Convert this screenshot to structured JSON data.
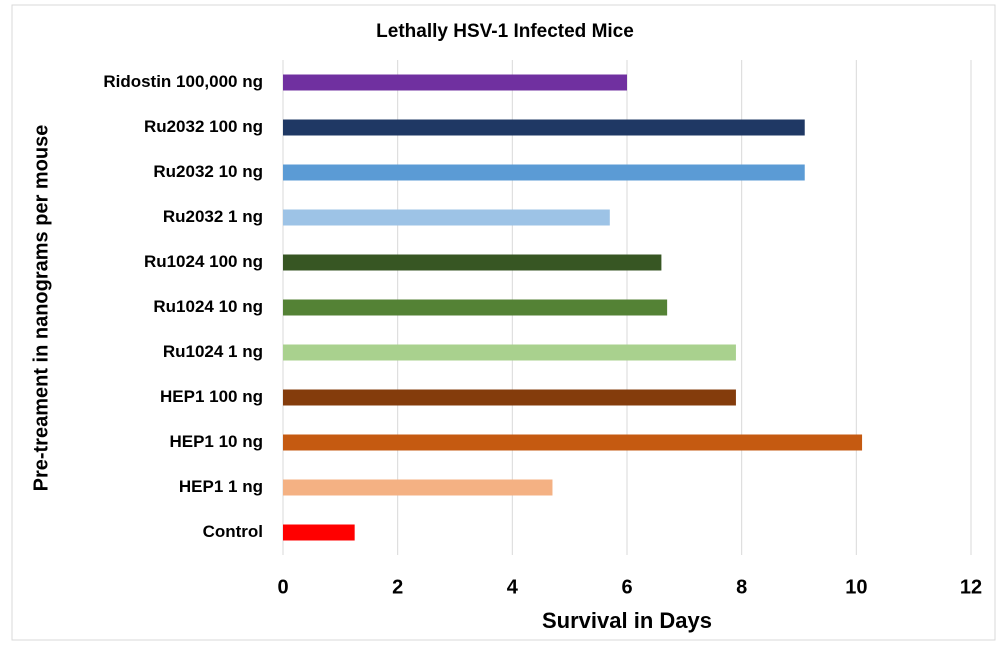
{
  "chart_data": {
    "type": "bar",
    "orientation": "horizontal",
    "title": "Lethally HSV-1 Infected Mice",
    "x_label": "Survival in Days",
    "y_label": "Pre-treament in nanograms per mouse",
    "categories": [
      "Ridostin 100,000 ng",
      "Ru2032 100 ng",
      "Ru2032 10 ng",
      "Ru2032 1 ng",
      "Ru1024 100 ng",
      "Ru1024 10 ng",
      "Ru1024 1 ng",
      "HEP1 100 ng",
      "HEP1 10 ng",
      "HEP1 1 ng",
      "Control"
    ],
    "values": [
      6.0,
      9.1,
      9.1,
      5.7,
      6.6,
      6.7,
      7.9,
      7.9,
      10.1,
      4.7,
      1.25
    ],
    "colors": [
      "#7030a0",
      "#1f3864",
      "#5b9bd5",
      "#9dc3e6",
      "#375623",
      "#548235",
      "#a9d18e",
      "#843c0c",
      "#c55a11",
      "#f4b183",
      "#ff0000"
    ],
    "xlim": [
      0,
      12
    ],
    "xticks": [
      0,
      2,
      4,
      6,
      8,
      10,
      12
    ],
    "grid": true
  }
}
